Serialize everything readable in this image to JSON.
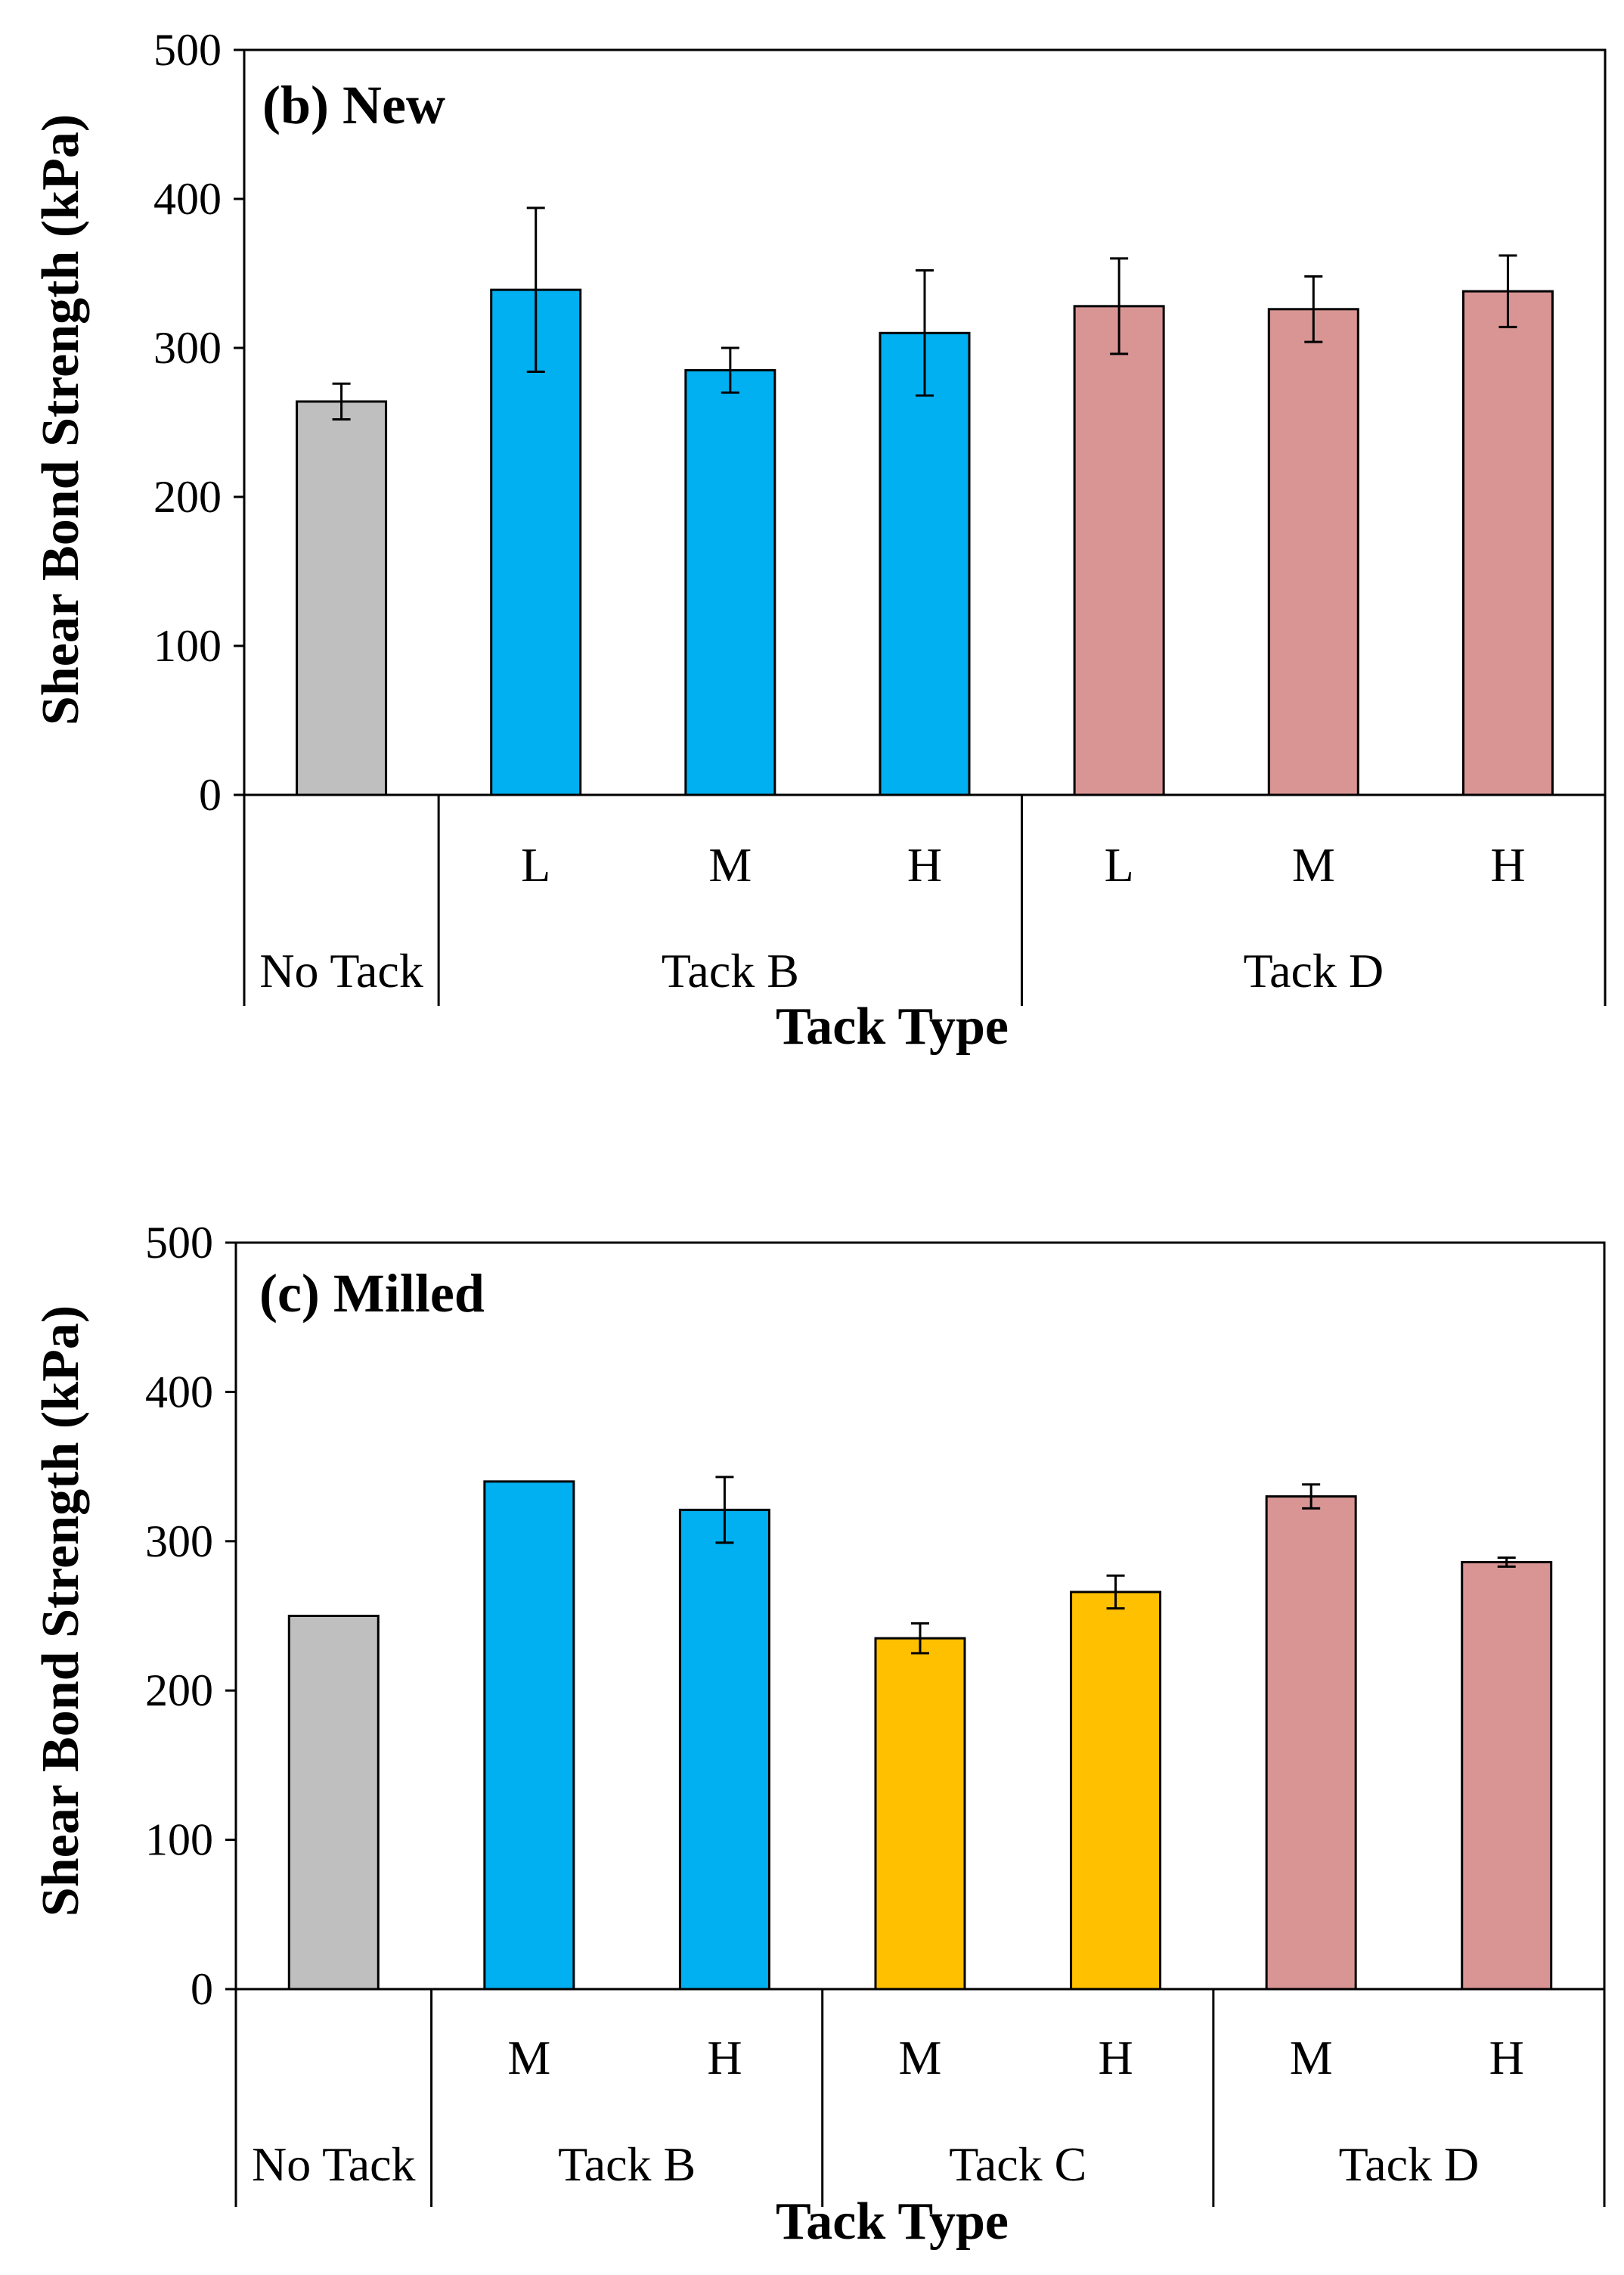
{
  "chart_data": [
    {
      "type": "bar",
      "title": "(b) New",
      "xlabel": "Tack Type",
      "ylabel": "Shear Bond Strength (kPa)",
      "ylim": [
        0,
        500
      ],
      "yticks": [
        0,
        100,
        200,
        300,
        400,
        500
      ],
      "groups": [
        {
          "label": "No Tack",
          "span": 1
        },
        {
          "label": "Tack B",
          "span": 3
        },
        {
          "label": "Tack D",
          "span": 3
        }
      ],
      "categories": [
        "",
        "L",
        "M",
        "H",
        "L",
        "M",
        "H"
      ],
      "values": [
        264,
        339,
        285,
        310,
        328,
        326,
        338
      ],
      "errors": [
        12,
        55,
        15,
        42,
        32,
        22,
        24
      ],
      "colors": [
        "#bfbfbf",
        "#00b0f0",
        "#00b0f0",
        "#00b0f0",
        "#d99594",
        "#d99594",
        "#d99594"
      ]
    },
    {
      "type": "bar",
      "title": "(c) Milled",
      "xlabel": "Tack Type",
      "ylabel": "Shear Bond Strength (kPa)",
      "ylim": [
        0,
        500
      ],
      "yticks": [
        0,
        100,
        200,
        300,
        400,
        500
      ],
      "groups": [
        {
          "label": "No Tack",
          "span": 1
        },
        {
          "label": "Tack B",
          "span": 2
        },
        {
          "label": "Tack C",
          "span": 2
        },
        {
          "label": "Tack D",
          "span": 2
        }
      ],
      "categories": [
        "",
        "M",
        "H",
        "M",
        "H",
        "M",
        "H"
      ],
      "values": [
        250,
        340,
        321,
        235,
        266,
        330,
        286
      ],
      "errors": [
        0,
        0,
        22,
        10,
        11,
        8,
        3
      ],
      "colors": [
        "#bfbfbf",
        "#00b0f0",
        "#00b0f0",
        "#ffc000",
        "#ffc000",
        "#d99594",
        "#d99594"
      ]
    }
  ]
}
